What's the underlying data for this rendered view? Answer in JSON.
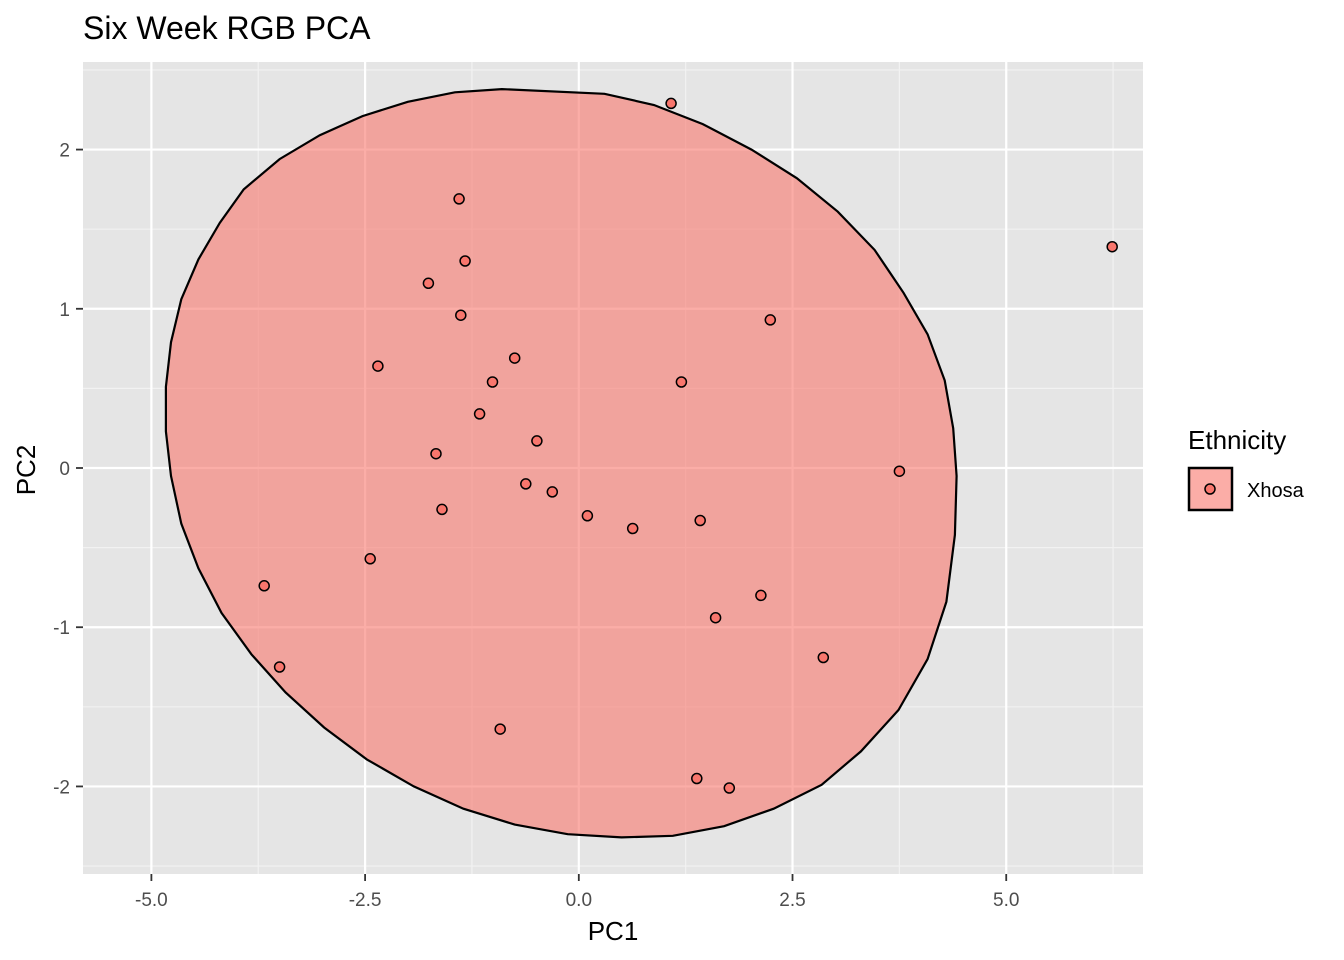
{
  "chart_data": {
    "type": "scatter",
    "title": "Six Week RGB PCA",
    "xlabel": "PC1",
    "ylabel": "PC2",
    "xlim": [
      -5.8,
      6.6
    ],
    "ylim": [
      -2.55,
      2.55
    ],
    "x_ticks": [
      -5.0,
      -2.5,
      0.0,
      2.5,
      5.0
    ],
    "x_tick_labels": [
      "-5.0",
      "-2.5",
      "0.0",
      "2.5",
      "5.0"
    ],
    "y_ticks": [
      -2,
      -1,
      0,
      1,
      2
    ],
    "y_tick_labels": [
      "-2",
      "-1",
      "0",
      "1",
      "2"
    ],
    "grid": true,
    "legend": {
      "title": "Ethnicity",
      "position": "right",
      "entries": [
        {
          "label": "Xhosa",
          "color": "#f8766d"
        }
      ]
    },
    "series": [
      {
        "name": "Xhosa",
        "color": "#f8766d",
        "ellipse_fill": "#f8766d",
        "points": [
          {
            "x": 1.08,
            "y": 2.29
          },
          {
            "x": 6.24,
            "y": 1.39
          },
          {
            "x": -1.4,
            "y": 1.69
          },
          {
            "x": -1.33,
            "y": 1.3
          },
          {
            "x": -1.76,
            "y": 1.16
          },
          {
            "x": -1.38,
            "y": 0.96
          },
          {
            "x": 2.24,
            "y": 0.93
          },
          {
            "x": -0.75,
            "y": 0.69
          },
          {
            "x": -2.35,
            "y": 0.64
          },
          {
            "x": -1.01,
            "y": 0.54
          },
          {
            "x": 1.2,
            "y": 0.54
          },
          {
            "x": -1.16,
            "y": 0.34
          },
          {
            "x": -0.49,
            "y": 0.17
          },
          {
            "x": -1.67,
            "y": 0.09
          },
          {
            "x": 3.75,
            "y": -0.02
          },
          {
            "x": -0.62,
            "y": -0.1
          },
          {
            "x": -0.31,
            "y": -0.15
          },
          {
            "x": -1.6,
            "y": -0.26
          },
          {
            "x": 0.1,
            "y": -0.3
          },
          {
            "x": 1.42,
            "y": -0.33
          },
          {
            "x": 0.63,
            "y": -0.38
          },
          {
            "x": -2.44,
            "y": -0.57
          },
          {
            "x": -3.68,
            "y": -0.74
          },
          {
            "x": 2.13,
            "y": -0.8
          },
          {
            "x": 1.6,
            "y": -0.94
          },
          {
            "x": 2.86,
            "y": -1.19
          },
          {
            "x": -3.5,
            "y": -1.25
          },
          {
            "x": -0.92,
            "y": -1.64
          },
          {
            "x": 1.38,
            "y": -1.95
          },
          {
            "x": 1.76,
            "y": -2.01
          }
        ],
        "ellipse": [
          [
            -0.9,
            2.38
          ],
          [
            -1.45,
            2.36
          ],
          [
            -2.0,
            2.3
          ],
          [
            -2.53,
            2.21
          ],
          [
            -3.03,
            2.09
          ],
          [
            -3.5,
            1.94
          ],
          [
            -3.92,
            1.75
          ],
          [
            -4.2,
            1.54
          ],
          [
            -4.45,
            1.31
          ],
          [
            -4.65,
            1.06
          ],
          [
            -4.77,
            0.79
          ],
          [
            -4.83,
            0.51
          ],
          [
            -4.83,
            0.23
          ],
          [
            -4.77,
            -0.05
          ],
          [
            -4.65,
            -0.35
          ],
          [
            -4.45,
            -0.63
          ],
          [
            -4.18,
            -0.91
          ],
          [
            -3.83,
            -1.17
          ],
          [
            -3.43,
            -1.41
          ],
          [
            -2.98,
            -1.63
          ],
          [
            -2.48,
            -1.83
          ],
          [
            -1.93,
            -2.0
          ],
          [
            -1.35,
            -2.14
          ],
          [
            -0.75,
            -2.24
          ],
          [
            -0.13,
            -2.3
          ],
          [
            0.5,
            -2.32
          ],
          [
            1.1,
            -2.31
          ],
          [
            1.7,
            -2.25
          ],
          [
            2.28,
            -2.14
          ],
          [
            2.84,
            -1.99
          ],
          [
            3.3,
            -1.78
          ],
          [
            3.74,
            -1.52
          ],
          [
            4.08,
            -1.2
          ],
          [
            4.3,
            -0.84
          ],
          [
            4.4,
            -0.42
          ],
          [
            4.42,
            -0.05
          ],
          [
            4.38,
            0.25
          ],
          [
            4.28,
            0.55
          ],
          [
            4.08,
            0.84
          ],
          [
            3.8,
            1.1
          ],
          [
            3.46,
            1.37
          ],
          [
            3.03,
            1.61
          ],
          [
            2.55,
            1.82
          ],
          [
            2.02,
            2.0
          ],
          [
            1.45,
            2.16
          ],
          [
            0.88,
            2.28
          ],
          [
            0.3,
            2.35
          ]
        ]
      }
    ]
  }
}
